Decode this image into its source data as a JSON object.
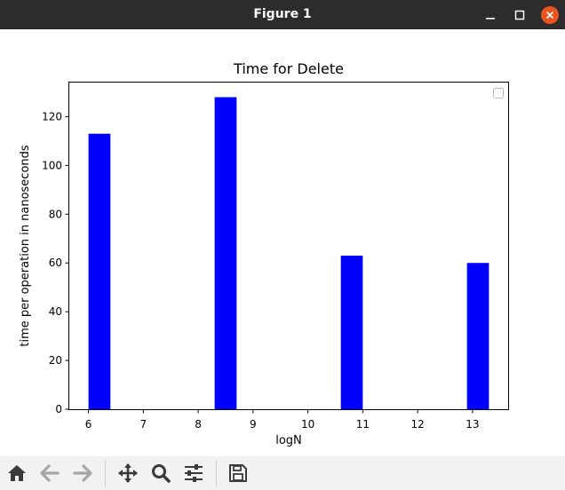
{
  "window": {
    "title": "Figure 1"
  },
  "toolbar": {
    "buttons": [
      {
        "name": "home-icon"
      },
      {
        "name": "back-arrow-icon"
      },
      {
        "name": "forward-arrow-icon"
      },
      {
        "name": "pan-move-icon"
      },
      {
        "name": "zoom-magnifier-icon"
      },
      {
        "name": "configure-subplots-icon"
      },
      {
        "name": "save-floppy-icon"
      }
    ]
  },
  "chart_data": {
    "type": "bar",
    "title": "Time for Delete",
    "xlabel": "logN",
    "ylabel": "time per operation in nanoseconds",
    "x": [
      6.2,
      8.5,
      10.8,
      13.1
    ],
    "values": [
      113,
      128,
      63,
      60
    ],
    "bar_width": 0.4,
    "color": "#0000ff",
    "xlim": [
      5.65,
      13.65
    ],
    "ylim": [
      0,
      134
    ],
    "xticks": [
      6,
      7,
      8,
      9,
      10,
      11,
      12,
      13
    ],
    "yticks": [
      0,
      20,
      40,
      60,
      80,
      100,
      120
    ],
    "grid": false,
    "legend": "top-right, empty"
  }
}
